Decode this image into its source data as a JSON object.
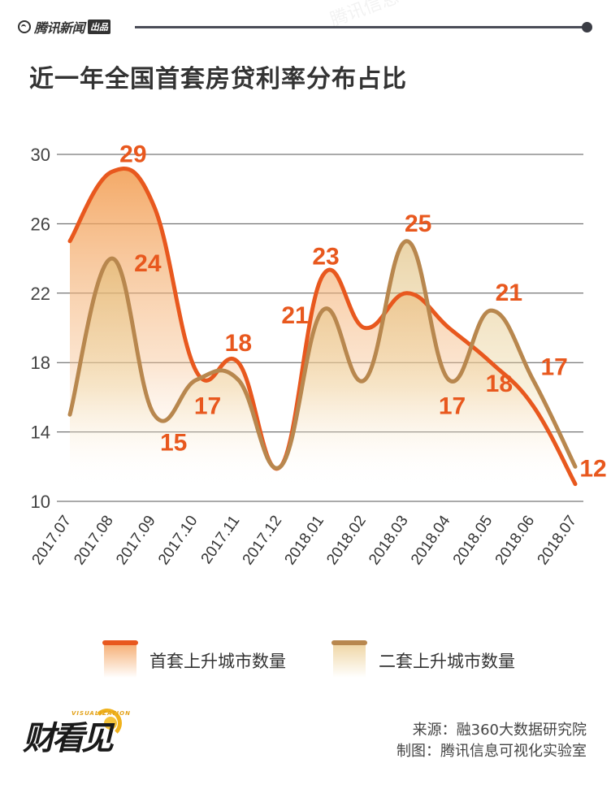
{
  "header": {
    "brand": "腾讯新闻",
    "badge": "出品",
    "icon": "tencent-news-logo-icon"
  },
  "title": "近一年全国首套房贷利率分布占比",
  "watermark": "腾讯信息可视化实验室",
  "legend": [
    {
      "label": "首套上升城市数量",
      "color": "#e8581e"
    },
    {
      "label": "二套上升城市数量",
      "color": "#b8874e"
    }
  ],
  "footer": {
    "logo_text": "财看见",
    "logo_sub": "VISUALIZATION",
    "source": "来源：融360大数据研究院",
    "made_by": "制图：腾讯信息可视化实验室"
  },
  "colors": {
    "first_home": "#e8581e",
    "second_home": "#b8874e",
    "label": "#e8581e",
    "grid": "#555555",
    "title": "#333333"
  },
  "chart_data": {
    "type": "area",
    "title": "近一年全国首套房贷利率分布占比",
    "xlabel": "",
    "ylabel": "",
    "categories": [
      "2017.07",
      "2017.08",
      "2017.09",
      "2017.10",
      "2017.11",
      "2017.12",
      "2018.01",
      "2018.02",
      "2018.03",
      "2018.04",
      "2018.05",
      "2018.06",
      "2018.07"
    ],
    "yticks": [
      10,
      14,
      18,
      22,
      26,
      30
    ],
    "ylim": [
      10,
      30
    ],
    "grid": true,
    "legend_position": "bottom",
    "series": [
      {
        "name": "首套上升城市数量",
        "values": [
          25,
          29,
          27,
          17.5,
          18,
          12,
          23,
          20,
          22,
          20,
          18,
          15.5,
          11
        ]
      },
      {
        "name": "二套上升城市数量",
        "values": [
          15,
          24,
          15,
          17,
          17,
          12,
          21,
          17,
          25,
          17,
          21,
          17,
          12
        ]
      }
    ],
    "annotations": [
      {
        "text": "29",
        "series": "首套上升城市数量",
        "category": "2017.08"
      },
      {
        "text": "24",
        "series": "二套上升城市数量",
        "category": "2017.08"
      },
      {
        "text": "15",
        "series": "二套上升城市数量",
        "category": "2017.09"
      },
      {
        "text": "17",
        "series": "二套上升城市数量",
        "category": "2017.10"
      },
      {
        "text": "18",
        "series": "首套上升城市数量",
        "category": "2017.11"
      },
      {
        "text": "21",
        "series": "二套上升城市数量",
        "category": "2018.01"
      },
      {
        "text": "23",
        "series": "首套上升城市数量",
        "category": "2018.01"
      },
      {
        "text": "25",
        "series": "二套上升城市数量",
        "category": "2018.03"
      },
      {
        "text": "17",
        "series": "二套上升城市数量",
        "category": "2018.04"
      },
      {
        "text": "18",
        "series": "首套上升城市数量",
        "category": "2018.05"
      },
      {
        "text": "21",
        "series": "二套上升城市数量",
        "category": "2018.05"
      },
      {
        "text": "17",
        "series": "二套上升城市数量",
        "category": "2018.06"
      },
      {
        "text": "12",
        "series": "二套上升城市数量",
        "category": "2018.07"
      }
    ]
  }
}
